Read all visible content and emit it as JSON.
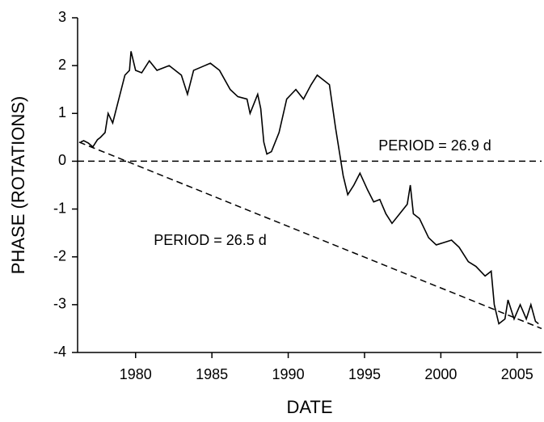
{
  "chart_data": {
    "type": "line",
    "x_label": "DATE",
    "y_label": "PHASE (ROTATIONS)",
    "annotations": [
      "PERIOD = 26.9 d",
      "PERIOD = 26.5 d"
    ],
    "xlim": [
      1976.2,
      2006.6
    ],
    "xticks": [
      1980,
      1985,
      1990,
      1995,
      2000,
      2005
    ],
    "ylim": [
      -4,
      3
    ],
    "yticks": [
      -4,
      -3,
      -2,
      -1,
      0,
      1,
      2,
      3
    ],
    "series": [
      {
        "color": "#000000",
        "dash": false,
        "x": [
          1976.4,
          1976.6,
          1976.9,
          1977.2,
          1977.5,
          1977.7,
          1978.0,
          1978.2,
          1978.5,
          1978.9,
          1979.3,
          1979.6,
          1979.7,
          1980.0,
          1980.4,
          1980.9,
          1981.4,
          1982.2,
          1983.0,
          1983.4,
          1983.8,
          1984.9,
          1985.5,
          1986.2,
          1986.7,
          1987.3,
          1987.5,
          1988.0,
          1988.2,
          1988.4,
          1988.6,
          1988.9,
          1989.4,
          1989.9,
          1990.2,
          1990.5,
          1991.0,
          1991.5,
          1991.9,
          1992.3,
          1992.7,
          1993.1,
          1993.4,
          1993.6,
          1993.9,
          1994.3,
          1994.7,
          1995.2,
          1995.6,
          1996.0,
          1996.4,
          1996.8,
          1997.3,
          1997.8,
          1998.0,
          1998.2,
          1998.6,
          1999.2,
          1999.7,
          2000.2,
          2000.7,
          2001.2,
          2001.8,
          2002.3,
          2002.9,
          2003.3,
          2003.5,
          2003.8,
          2004.2,
          2004.4,
          2004.8,
          2005.2,
          2005.6,
          2005.9,
          2006.2,
          2006.4
        ],
        "values": [
          0.4,
          0.43,
          0.38,
          0.3,
          0.45,
          0.5,
          0.6,
          1.0,
          0.8,
          1.3,
          1.8,
          1.9,
          2.3,
          1.9,
          1.85,
          2.1,
          1.9,
          2.0,
          1.8,
          1.4,
          1.9,
          2.05,
          1.9,
          1.5,
          1.35,
          1.3,
          1.0,
          1.4,
          1.1,
          0.4,
          0.15,
          0.2,
          0.6,
          1.3,
          1.4,
          1.5,
          1.3,
          1.6,
          1.8,
          1.7,
          1.6,
          0.7,
          0.1,
          -0.3,
          -0.7,
          -0.5,
          -0.25,
          -0.6,
          -0.85,
          -0.8,
          -1.1,
          -1.3,
          -1.1,
          -0.9,
          -0.5,
          -1.1,
          -1.2,
          -1.6,
          -1.75,
          -1.7,
          -1.65,
          -1.8,
          -2.1,
          -2.2,
          -2.4,
          -2.3,
          -3.0,
          -3.4,
          -3.3,
          -2.9,
          -3.3,
          -3.0,
          -3.3,
          -3.0,
          -3.35,
          -3.4
        ]
      },
      {
        "color": "#000000",
        "dash": true,
        "x": [
          1976.2,
          2006.6
        ],
        "values": [
          0,
          0
        ]
      },
      {
        "color": "#000000",
        "dash": true,
        "x": [
          1976.3,
          2006.6
        ],
        "values": [
          0.4,
          -3.5
        ]
      }
    ]
  }
}
